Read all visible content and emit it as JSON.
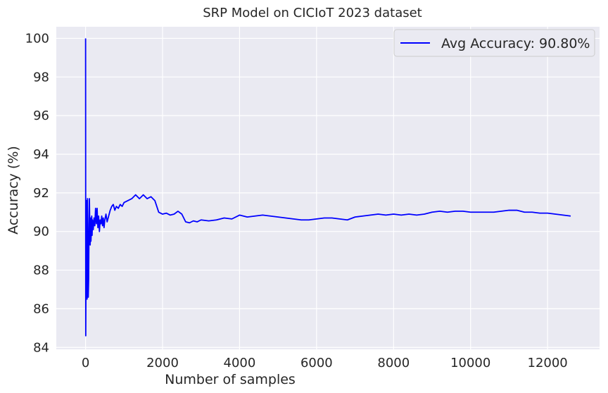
{
  "chart_data": {
    "type": "line",
    "title": "SRP Model on CICIoT 2023 dataset",
    "xlabel": "Number of samples",
    "ylabel": "Accuracy (%)",
    "xlim": [
      -760,
      13350
    ],
    "ylim": [
      83.9,
      100.6
    ],
    "xticks": [
      0,
      2000,
      4000,
      6000,
      8000,
      10000,
      12000
    ],
    "yticks": [
      84,
      86,
      88,
      90,
      92,
      94,
      96,
      98,
      100
    ],
    "grid": true,
    "legend_position": "top-right",
    "colors": {
      "background": "#eaeaf2",
      "grid": "#ffffff",
      "line": "#0000ff",
      "text": "#262626"
    },
    "series": [
      {
        "name": "Avg Accuracy: 90.80%",
        "x": [
          1,
          5,
          10,
          15,
          20,
          30,
          40,
          50,
          60,
          70,
          80,
          90,
          100,
          110,
          120,
          130,
          140,
          150,
          160,
          170,
          180,
          200,
          220,
          240,
          260,
          280,
          300,
          320,
          340,
          360,
          380,
          400,
          420,
          440,
          460,
          480,
          500,
          530,
          560,
          600,
          640,
          680,
          720,
          760,
          800,
          850,
          900,
          950,
          1000,
          1100,
          1200,
          1300,
          1400,
          1450,
          1500,
          1600,
          1700,
          1800,
          1900,
          2000,
          2100,
          2200,
          2300,
          2400,
          2500,
          2600,
          2700,
          2800,
          2900,
          3000,
          3200,
          3400,
          3600,
          3800,
          4000,
          4200,
          4400,
          4600,
          4800,
          5000,
          5200,
          5400,
          5600,
          5800,
          6000,
          6200,
          6400,
          6600,
          6800,
          7000,
          7200,
          7400,
          7600,
          7800,
          8000,
          8200,
          8400,
          8600,
          8800,
          9000,
          9200,
          9400,
          9600,
          9800,
          10000,
          10200,
          10400,
          10600,
          10800,
          11000,
          11200,
          11400,
          11600,
          11800,
          12000,
          12200,
          12400,
          12600
        ],
        "y": [
          100,
          84.6,
          87.0,
          89.5,
          91.6,
          88.2,
          86.5,
          91.7,
          89.1,
          86.6,
          87.5,
          90.3,
          91.7,
          90.2,
          89.3,
          90.7,
          89.5,
          90.0,
          90.8,
          89.8,
          90.6,
          90.1,
          90.7,
          90.3,
          91.2,
          90.4,
          91.2,
          90.2,
          90.8,
          90.0,
          90.6,
          90.4,
          90.8,
          90.3,
          90.7,
          90.2,
          90.6,
          90.9,
          90.5,
          90.8,
          91.1,
          91.3,
          91.4,
          91.1,
          91.3,
          91.2,
          91.4,
          91.3,
          91.5,
          91.6,
          91.7,
          91.9,
          91.7,
          91.8,
          91.9,
          91.7,
          91.8,
          91.6,
          91.0,
          90.9,
          90.95,
          90.85,
          90.9,
          91.05,
          90.9,
          90.5,
          90.45,
          90.55,
          90.5,
          90.6,
          90.55,
          90.6,
          90.7,
          90.65,
          90.85,
          90.75,
          90.8,
          90.85,
          90.8,
          90.75,
          90.7,
          90.65,
          90.6,
          90.6,
          90.65,
          90.7,
          90.7,
          90.65,
          90.6,
          90.75,
          90.8,
          90.85,
          90.9,
          90.85,
          90.9,
          90.85,
          90.9,
          90.85,
          90.9,
          91.0,
          91.05,
          91.0,
          91.05,
          91.05,
          91.0,
          91.0,
          91.0,
          91.0,
          91.05,
          91.1,
          91.1,
          91.0,
          91.0,
          90.95,
          90.95,
          90.9,
          90.85,
          90.8
        ]
      }
    ]
  }
}
